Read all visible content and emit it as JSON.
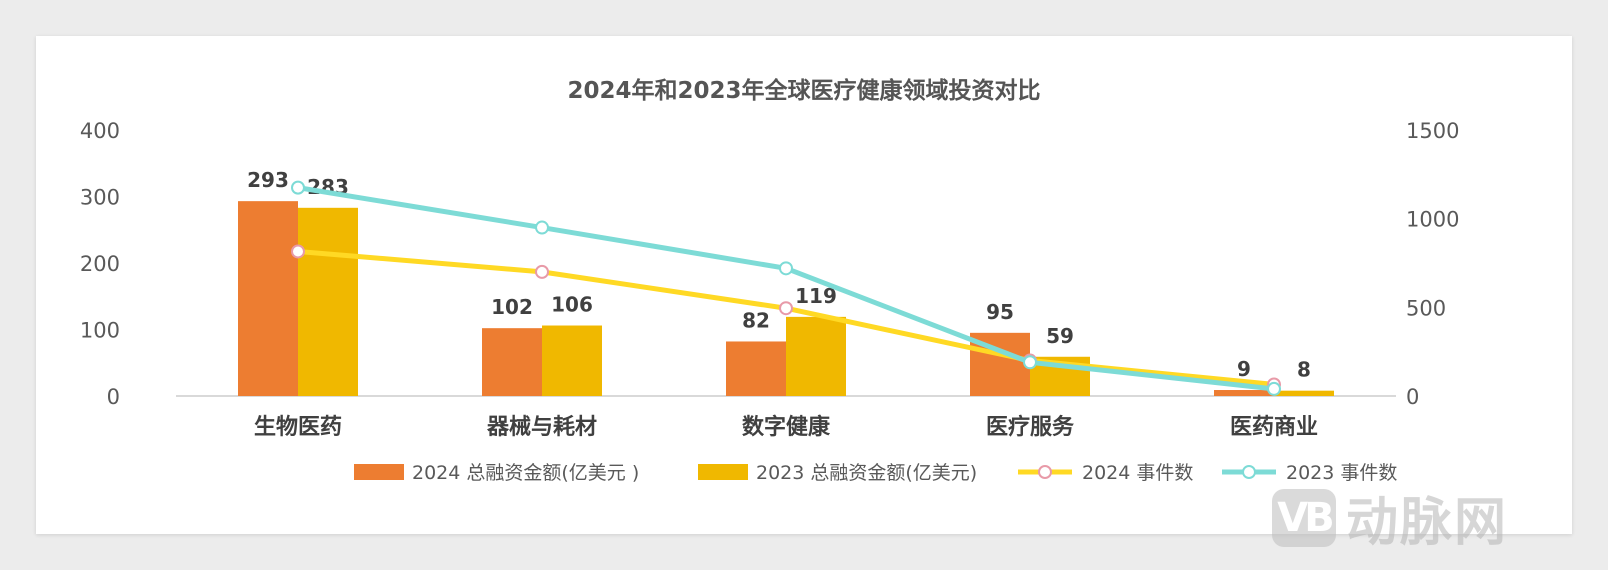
{
  "chart_data": {
    "type": "bar",
    "title": "2024年和2023年全球医疗健康领域投资对比",
    "categories": [
      "生物医药",
      "器械与耗材",
      "数字健康",
      "医疗服务",
      "医药商业"
    ],
    "left_axis": {
      "min": 0,
      "max": 400,
      "ticks": [
        0,
        100,
        200,
        300,
        400
      ]
    },
    "right_axis": {
      "min": 0,
      "max": 1500,
      "ticks": [
        0,
        500,
        1000,
        1500
      ]
    },
    "bar_series": [
      {
        "name": "2024 总融资金额(亿美元 )",
        "color": "#ED7D31",
        "values": [
          293,
          102,
          82,
          95,
          9
        ]
      },
      {
        "name": "2023 总融资金额(亿美元)",
        "color": "#F0B800",
        "values": [
          283,
          106,
          119,
          59,
          8
        ]
      }
    ],
    "line_series": [
      {
        "name": "2024 事件数",
        "color": "#FFD924",
        "marker_stroke": "#E89AA8",
        "axis": "right",
        "values": [
          815,
          700,
          495,
          200,
          65
        ]
      },
      {
        "name": "2023 事件数",
        "color": "#7DDBD6",
        "marker_stroke": "#7DDBD6",
        "axis": "right",
        "values": [
          1175,
          950,
          720,
          190,
          40
        ]
      }
    ],
    "grid": false,
    "legend_position": "bottom"
  },
  "watermark": {
    "logo_text": "VB",
    "brand_text": "动脉网"
  }
}
